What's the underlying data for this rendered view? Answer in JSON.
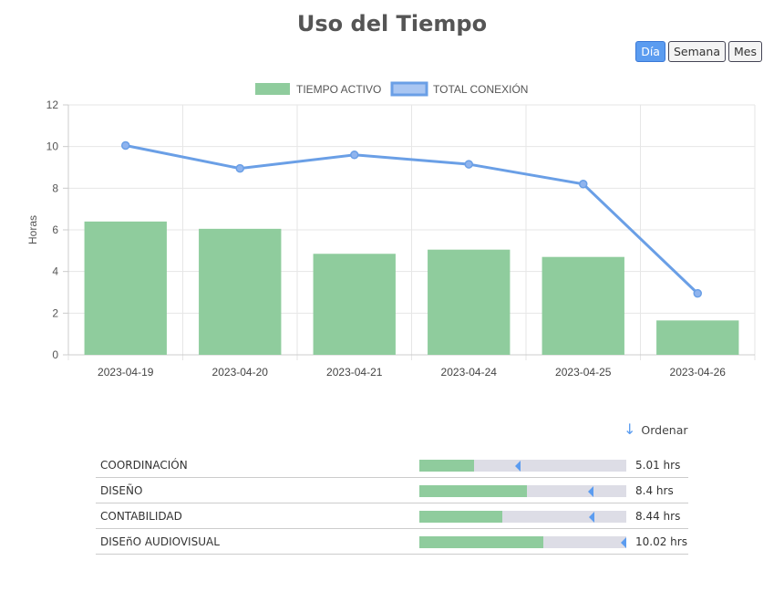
{
  "page": {
    "title": "Uso del Tiempo"
  },
  "period_tabs": [
    {
      "label": "Día",
      "active": true
    },
    {
      "label": "Semana",
      "active": false
    },
    {
      "label": "Mes",
      "active": false
    }
  ],
  "chart_data": {
    "type": "bar",
    "categories": [
      "2023-04-19",
      "2023-04-20",
      "2023-04-21",
      "2023-04-24",
      "2023-04-25",
      "2023-04-26"
    ],
    "series": [
      {
        "name": "TIEMPO ACTIVO",
        "type": "bar",
        "color": "#8fcc9d",
        "values": [
          6.4,
          6.05,
          4.85,
          5.05,
          4.7,
          1.65
        ]
      },
      {
        "name": "TOTAL CONEXIÓN",
        "type": "line",
        "color": "#6a9fe6",
        "values": [
          10.05,
          8.95,
          9.6,
          9.15,
          8.2,
          2.95
        ]
      }
    ],
    "ylabel": "Horas",
    "xlabel": "",
    "ylim": [
      0,
      12
    ],
    "yticks": [
      0,
      2,
      4,
      6,
      8,
      10,
      12
    ],
    "grid": true,
    "legend": "top-center"
  },
  "sort": {
    "label": "Ordenar",
    "icon": "down-arrow-icon"
  },
  "categories_list": [
    {
      "name": "COORDINACIÓN",
      "hours_label": "5.01 hrs",
      "active_fraction": 0.265,
      "marker_fraction": 0.49
    },
    {
      "name": "DISEÑO",
      "hours_label": "8.4 hrs",
      "active_fraction": 0.52,
      "marker_fraction": 0.84
    },
    {
      "name": "CONTABILIDAD",
      "hours_label": "8.44 hrs",
      "active_fraction": 0.4,
      "marker_fraction": 0.845
    },
    {
      "name": "DISEñO AUDIOVISUAL",
      "hours_label": "10.02 hrs",
      "active_fraction": 0.6,
      "marker_fraction": 1.0
    }
  ]
}
